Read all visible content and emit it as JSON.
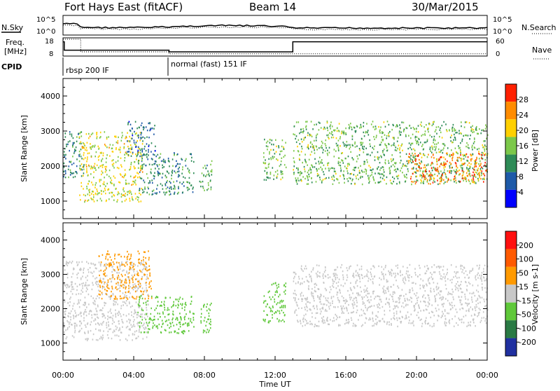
{
  "header": {
    "station": "Fort Hays East (fitACF)",
    "beam": "Beam 14",
    "date": "30/Mar/2015"
  },
  "noise_panel": {
    "left_label": "N.Sky",
    "right_label": "N.Search",
    "left_ticks": [
      "10^5",
      "10^0"
    ],
    "right_ticks": [
      "10^5",
      "10^0"
    ]
  },
  "freq_panel": {
    "left_label_1": "Freq.",
    "left_label_2": "[MHz]",
    "right_label": "Nave",
    "left_ticks": [
      "18",
      "8"
    ],
    "right_ticks": [
      "60",
      "0"
    ],
    "freq_steps": [
      {
        "t": 0.0,
        "mhz": 16.5
      },
      {
        "t": 0.05,
        "mhz": 16.5
      },
      {
        "t": 0.07,
        "mhz": 11.5
      },
      {
        "t": 6.0,
        "mhz": 10.5
      },
      {
        "t": 13.0,
        "mhz": 16.5
      },
      {
        "t": 24.0,
        "mhz": 16.5
      }
    ],
    "nave_steps": [
      {
        "t": 0.0,
        "n": 60
      },
      {
        "t": 1.0,
        "n": 15
      },
      {
        "t": 6.0,
        "n": 8
      },
      {
        "t": 24.0,
        "n": 8
      }
    ]
  },
  "cpid": {
    "label": "CPID",
    "segments": [
      {
        "start": 0,
        "end": 6,
        "name": "rbsp 200 IF"
      },
      {
        "start": 6,
        "end": 24,
        "name": "normal (fast) 151 IF"
      }
    ]
  },
  "power_panel": {
    "ylabel": "Slant Range [km]",
    "cbar_label": "Power [dB]",
    "cbar_ticks": [
      "28",
      "24",
      "20",
      "16",
      "12",
      "8",
      "4"
    ],
    "cbar_colors": [
      "#0000ff",
      "#1e5aa8",
      "#2e8b57",
      "#7cc84a",
      "#ffd000",
      "#ff8c00",
      "#ff2000"
    ],
    "y_ticks": [
      "4000",
      "3000",
      "2000",
      "1000"
    ]
  },
  "velocity_panel": {
    "ylabel": "Slant Range [km]",
    "cbar_label": "Velocity [m s-1]",
    "cbar_ticks": [
      "200",
      "100",
      "50",
      "15",
      "-15",
      "-50",
      "-100",
      "-200"
    ],
    "cbar_colors": [
      "#2030a0",
      "#2a7a44",
      "#5fc83a",
      "#c8c8c8",
      "#ff9a00",
      "#ff5a00",
      "#ff1010"
    ],
    "y_ticks": [
      "4000",
      "3000",
      "2000",
      "1000"
    ]
  },
  "x_axis": {
    "label": "Time UT",
    "ticks": [
      "00:00",
      "04:00",
      "08:00",
      "12:00",
      "16:00",
      "20:00",
      "00:00"
    ]
  },
  "chart_data": [
    {
      "type": "heatmap",
      "title": "Fort Hays East (fitACF) Beam 14 30/Mar/2015",
      "quantity": "Power",
      "unit": "dB",
      "xlabel": "Time UT",
      "ylabel": "Slant Range [km]",
      "xlim": [
        0,
        24
      ],
      "ylim": [
        500,
        4500
      ],
      "clim": [
        0,
        30
      ],
      "scatter_bands": [
        {
          "t0": 0.0,
          "t1": 1.2,
          "r0": 1700,
          "r1": 3000,
          "level": 10
        },
        {
          "t0": 0.9,
          "t1": 4.5,
          "r0": 1000,
          "r1": 3000,
          "level": 18
        },
        {
          "t0": 3.6,
          "t1": 5.2,
          "r0": 2300,
          "r1": 3300,
          "level": 8
        },
        {
          "t0": 4.2,
          "t1": 7.4,
          "r0": 1200,
          "r1": 2400,
          "level": 10
        },
        {
          "t0": 7.7,
          "t1": 8.4,
          "r0": 1300,
          "r1": 2200,
          "level": 12
        },
        {
          "t0": 11.3,
          "t1": 12.6,
          "r0": 1600,
          "r1": 2800,
          "level": 14
        },
        {
          "t0": 13.0,
          "t1": 24.0,
          "r0": 1500,
          "r1": 3300,
          "level": 14
        },
        {
          "t0": 19.5,
          "t1": 24.0,
          "r0": 1500,
          "r1": 2400,
          "level": 24
        }
      ]
    },
    {
      "type": "heatmap",
      "title": "Fort Hays East (fitACF) Beam 14 30/Mar/2015",
      "quantity": "Velocity",
      "unit": "m s-1",
      "xlabel": "Time UT",
      "ylabel": "Slant Range [km]",
      "xlim": [
        0,
        24
      ],
      "ylim": [
        500,
        4500
      ],
      "clim": [
        -200,
        200
      ],
      "scatter_bands": [
        {
          "t0": 0.0,
          "t1": 4.8,
          "r0": 1100,
          "r1": 3400,
          "level": 0
        },
        {
          "t0": 2.0,
          "t1": 5.0,
          "r0": 2300,
          "r1": 3700,
          "level": -40
        },
        {
          "t0": 4.2,
          "t1": 7.4,
          "r0": 1300,
          "r1": 2400,
          "level": 50
        },
        {
          "t0": 7.7,
          "t1": 8.4,
          "r0": 1300,
          "r1": 2200,
          "level": 50
        },
        {
          "t0": 11.3,
          "t1": 12.6,
          "r0": 1600,
          "r1": 2800,
          "level": 40
        },
        {
          "t0": 13.0,
          "t1": 24.0,
          "r0": 1500,
          "r1": 3300,
          "level": 0
        }
      ]
    }
  ]
}
